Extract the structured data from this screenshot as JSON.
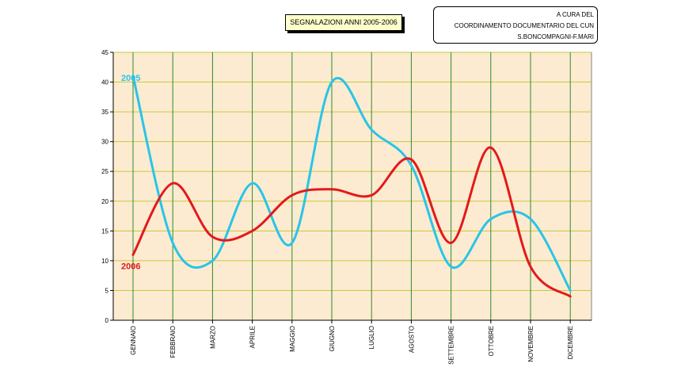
{
  "header": {
    "title": "SEGNALAZIONI ANNI 2005-2006",
    "credit_lines": [
      "A CURA DEL",
      "COORDINAMENTO DOCUMENTARIO DEL CUN",
      "S.BONCOMPAGNI-F.MARI"
    ]
  },
  "chart_data": {
    "type": "line",
    "title": "SEGNALAZIONI ANNI 2005-2006",
    "categories": [
      "GENNAIO",
      "FEBBRAIO",
      "MARZO",
      "APRILE",
      "MAGGIO",
      "GIUGNO",
      "LUGLIO",
      "AGOSTO",
      "SETTEMBRE",
      "OTTOBRE",
      "NOVEMBRE",
      "DICEMBRE"
    ],
    "ylim": [
      0,
      45
    ],
    "yticks": [
      "0",
      "5",
      "10",
      "15",
      "20",
      "25",
      "30",
      "35",
      "40",
      "45"
    ],
    "grid": true,
    "background_color": "#fcebd0",
    "grid_colors": {
      "horizontal": "#c8c840",
      "vertical": "#2e8b2e"
    },
    "series": [
      {
        "name": "2005",
        "color": "#29c4e8",
        "values": [
          41,
          13,
          10,
          23,
          13,
          40,
          32,
          26,
          9,
          17,
          17,
          5
        ]
      },
      {
        "name": "2006",
        "color": "#e3191b",
        "values": [
          11,
          23,
          14,
          15,
          21,
          22,
          21,
          27,
          13,
          29,
          9,
          4
        ]
      }
    ]
  }
}
